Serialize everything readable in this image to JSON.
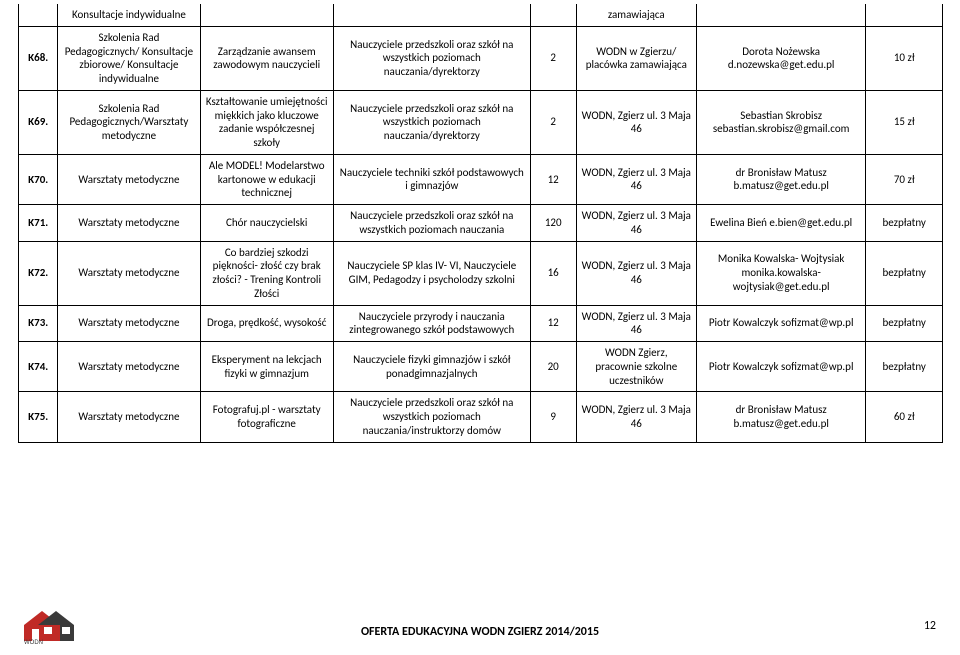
{
  "rows": [
    {
      "id": "",
      "type": "Konsultacje indywidualne",
      "topic": "",
      "target": "",
      "count": "",
      "place": "zamawiająca",
      "contact": "",
      "price": ""
    },
    {
      "id": "K68.",
      "type": "Szkolenia Rad Pedagogicznych/ Konsultacje zbiorowe/ Konsultacje indywidualne",
      "topic": "Zarządzanie awansem zawodowym nauczycieli",
      "target": "Nauczyciele przedszkoli oraz szkół na wszystkich poziomach nauczania/dyrektorzy",
      "count": "2",
      "place": "WODN w Zgierzu/ placówka zamawiająca",
      "contact": "Dorota Nożewska d.nozewska@get.edu.pl",
      "price": "10 zł"
    },
    {
      "id": "K69.",
      "type": "Szkolenia Rad Pedagogicznych/Warsztaty metodyczne",
      "topic": "Kształtowanie umiejętności miękkich jako kluczowe zadanie współczesnej szkoły",
      "target": "Nauczyciele przedszkoli oraz szkół na wszystkich poziomach nauczania/dyrektorzy",
      "count": "2",
      "place": "WODN, Zgierz ul. 3 Maja 46",
      "contact": "Sebastian Skrobisz sebastian.skrobisz@gmail.com",
      "price": "15 zł"
    },
    {
      "id": "K70.",
      "type": "Warsztaty metodyczne",
      "topic": "Ale MODEL! Modelarstwo kartonowe w edukacji technicznej",
      "target": "Nauczyciele techniki szkół podstawowych i gimnazjów",
      "count": "12",
      "place": "WODN, Zgierz ul. 3 Maja 46",
      "contact": "dr Bronisław Matusz b.matusz@get.edu.pl",
      "price": "70 zł"
    },
    {
      "id": "K71.",
      "type": "Warsztaty metodyczne",
      "topic": "Chór nauczycielski",
      "target": "Nauczyciele przedszkoli oraz szkół na wszystkich poziomach nauczania",
      "count": "120",
      "place": "WODN, Zgierz ul. 3 Maja 46",
      "contact": "Ewelina Bień e.bien@get.edu.pl",
      "price": "bezpłatny"
    },
    {
      "id": "K72.",
      "type": "Warsztaty metodyczne",
      "topic": "Co bardziej szkodzi piękności- złość czy brak złości? - Trening Kontroli  Złości",
      "target": "Nauczyciele SP klas IV- VI, Nauczyciele GIM, Pedagodzy i psycholodzy szkolni",
      "count": "16",
      "place": "WODN, Zgierz ul. 3 Maja 46",
      "contact": "Monika Kowalska- Wojtysiak monika.kowalska-wojtysiak@get.edu.pl",
      "price": "bezpłatny"
    },
    {
      "id": "K73.",
      "type": "Warsztaty metodyczne",
      "topic": "Droga, prędkość, wysokość",
      "target": "Nauczyciele przyrody i nauczania zintegrowanego szkół podstawowych",
      "count": "12",
      "place": "WODN, Zgierz ul. 3 Maja 46",
      "contact": "Piotr Kowalczyk sofizmat@wp.pl",
      "price": "bezpłatny"
    },
    {
      "id": "K74.",
      "type": "Warsztaty metodyczne",
      "topic": "Eksperyment na lekcjach fizyki w gimnazjum",
      "target": "Nauczyciele fizyki gimnazjów i szkół ponadgimnazjalnych",
      "count": "20",
      "place": "WODN Zgierz, pracownie szkolne uczestników",
      "contact": "Piotr Kowalczyk sofizmat@wp.pl",
      "price": "bezpłatny"
    },
    {
      "id": "K75.",
      "type": "Warsztaty metodyczne",
      "topic": "Fotografuj.pl - warsztaty fotograficzne",
      "target": "Nauczyciele przedszkoli oraz szkół na wszystkich poziomach nauczania/instruktorzy domów",
      "count": "9",
      "place": "WODN, Zgierz ul. 3 Maja 46",
      "contact": "dr Bronisław Matusz b.matusz@get.edu.pl",
      "price": "60 zł"
    }
  ],
  "footer": {
    "title": "OFERTA EDUKACYJNA WODN ZGIERZ 2014/2015",
    "page": "12"
  },
  "colors": {
    "border": "#000000",
    "text": "#000000",
    "logo_red": "#c02a26",
    "logo_dark": "#3a3a3a"
  }
}
